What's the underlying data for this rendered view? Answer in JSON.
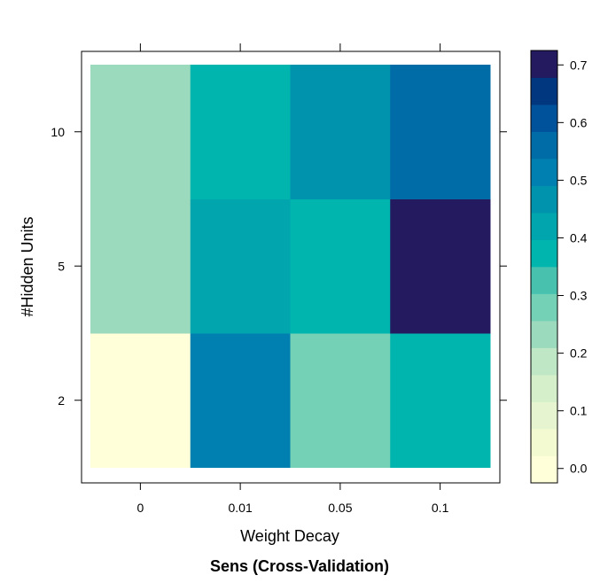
{
  "chart_data": {
    "type": "heatmap",
    "title": "Sens (Cross-Validation)",
    "xlabel": "Weight Decay",
    "ylabel": "#Hidden Units",
    "x_categories": [
      "0",
      "0.01",
      "0.05",
      "0.1"
    ],
    "y_categories": [
      "2",
      "5",
      "10"
    ],
    "values": [
      [
        0.0,
        0.5,
        0.28,
        0.38
      ],
      [
        0.21,
        0.41,
        0.38,
        0.7
      ],
      [
        0.21,
        0.38,
        0.46,
        0.55
      ]
    ],
    "colorbar": {
      "ticks": [
        "0.0",
        "0.1",
        "0.2",
        "0.3",
        "0.4",
        "0.5",
        "0.6",
        "0.7"
      ],
      "tick_values": [
        0.0,
        0.1,
        0.2,
        0.3,
        0.4,
        0.5,
        0.6,
        0.7
      ],
      "range": [
        -0.025,
        0.725
      ],
      "colors": [
        "#FFFFD9",
        "#F3FAD2",
        "#E6F5D0",
        "#D5EFCB",
        "#BFE6C5",
        "#9CDABD",
        "#74D1B5",
        "#48C2AF",
        "#01B5AF",
        "#00A5AD",
        "#0093AD",
        "#0080B0",
        "#006CA7",
        "#00529A",
        "#00377F",
        "#241A60"
      ]
    }
  }
}
